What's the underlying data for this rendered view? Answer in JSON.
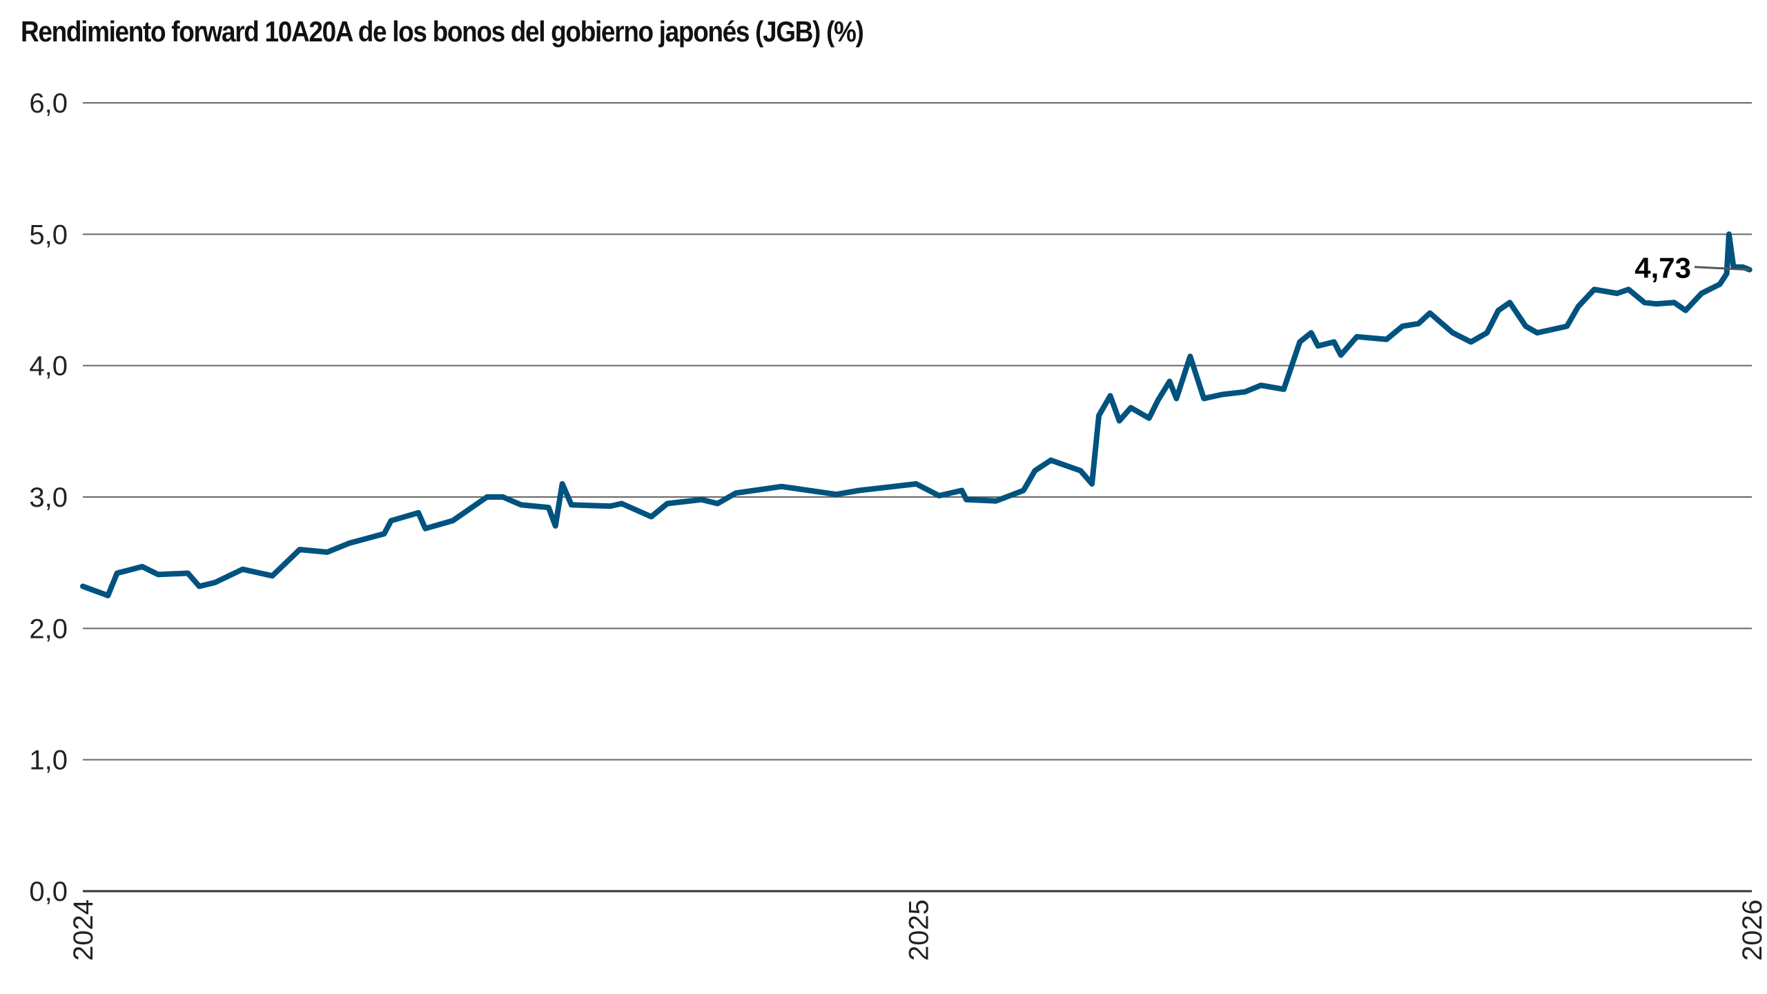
{
  "chart_data": {
    "type": "line",
    "title": "Rendimiento forward 10A20A de los bonos del gobierno japonés (JGB) (%)",
    "xlabel": "",
    "ylabel": "",
    "xlim": [
      "2024-01-01",
      "2026-01-01"
    ],
    "ylim": [
      0,
      6
    ],
    "grid": "horizontal",
    "legend": "none",
    "line_color": "#00527f",
    "y_ticks": [
      "0,0",
      "1,0",
      "2,0",
      "3,0",
      "4,0",
      "5,0",
      "6,0"
    ],
    "x_ticks": [
      {
        "date": "2024-01-01",
        "label": "2024"
      },
      {
        "date": "2025-01-01",
        "label": "2025"
      },
      {
        "date": "2026-01-01",
        "label": "2026"
      }
    ],
    "annotation": {
      "label": "4,73",
      "value": 4.73
    },
    "series": [
      {
        "points": [
          [
            "2024-01-01",
            2.32
          ],
          [
            "2024-01-12",
            2.25
          ],
          [
            "2024-01-16",
            2.42
          ],
          [
            "2024-01-27",
            2.47
          ],
          [
            "2024-02-03",
            2.41
          ],
          [
            "2024-02-16",
            2.42
          ],
          [
            "2024-02-21",
            2.32
          ],
          [
            "2024-02-28",
            2.35
          ],
          [
            "2024-03-11",
            2.45
          ],
          [
            "2024-03-24",
            2.4
          ],
          [
            "2024-04-05",
            2.6
          ],
          [
            "2024-04-17",
            2.58
          ],
          [
            "2024-04-27",
            2.65
          ],
          [
            "2024-05-12",
            2.72
          ],
          [
            "2024-05-15",
            2.82
          ],
          [
            "2024-05-27",
            2.88
          ],
          [
            "2024-05-30",
            2.76
          ],
          [
            "2024-06-11",
            2.82
          ],
          [
            "2024-06-26",
            3.0
          ],
          [
            "2024-07-03",
            3.0
          ],
          [
            "2024-07-11",
            2.94
          ],
          [
            "2024-07-23",
            2.92
          ],
          [
            "2024-07-26",
            2.78
          ],
          [
            "2024-07-29",
            3.1
          ],
          [
            "2024-08-02",
            2.94
          ],
          [
            "2024-08-19",
            2.93
          ],
          [
            "2024-08-24",
            2.95
          ],
          [
            "2024-09-06",
            2.85
          ],
          [
            "2024-09-13",
            2.95
          ],
          [
            "2024-09-28",
            2.98
          ],
          [
            "2024-10-05",
            2.95
          ],
          [
            "2024-10-13",
            3.03
          ],
          [
            "2024-11-02",
            3.08
          ],
          [
            "2024-11-26",
            3.02
          ],
          [
            "2024-12-06",
            3.05
          ],
          [
            "2024-12-31",
            3.1
          ],
          [
            "2025-01-10",
            3.01
          ],
          [
            "2025-01-20",
            3.05
          ],
          [
            "2025-01-22",
            2.98
          ],
          [
            "2025-02-04",
            2.97
          ],
          [
            "2025-02-16",
            3.05
          ],
          [
            "2025-02-21",
            3.2
          ],
          [
            "2025-02-28",
            3.28
          ],
          [
            "2025-03-13",
            3.2
          ],
          [
            "2025-03-18",
            3.1
          ],
          [
            "2025-03-21",
            3.62
          ],
          [
            "2025-03-26",
            3.77
          ],
          [
            "2025-03-30",
            3.58
          ],
          [
            "2025-04-04",
            3.68
          ],
          [
            "2025-04-12",
            3.6
          ],
          [
            "2025-04-16",
            3.74
          ],
          [
            "2025-04-21",
            3.88
          ],
          [
            "2025-04-24",
            3.75
          ],
          [
            "2025-04-30",
            4.07
          ],
          [
            "2025-05-06",
            3.75
          ],
          [
            "2025-05-14",
            3.78
          ],
          [
            "2025-05-24",
            3.8
          ],
          [
            "2025-05-31",
            3.85
          ],
          [
            "2025-06-10",
            3.82
          ],
          [
            "2025-06-17",
            4.18
          ],
          [
            "2025-06-22",
            4.25
          ],
          [
            "2025-06-25",
            4.15
          ],
          [
            "2025-07-02",
            4.18
          ],
          [
            "2025-07-05",
            4.08
          ],
          [
            "2025-07-12",
            4.22
          ],
          [
            "2025-07-25",
            4.2
          ],
          [
            "2025-08-01",
            4.3
          ],
          [
            "2025-08-08",
            4.32
          ],
          [
            "2025-08-13",
            4.4
          ],
          [
            "2025-08-23",
            4.25
          ],
          [
            "2025-08-31",
            4.18
          ],
          [
            "2025-09-07",
            4.25
          ],
          [
            "2025-09-12",
            4.42
          ],
          [
            "2025-09-17",
            4.48
          ],
          [
            "2025-09-24",
            4.3
          ],
          [
            "2025-09-29",
            4.25
          ],
          [
            "2025-10-12",
            4.3
          ],
          [
            "2025-10-17",
            4.45
          ],
          [
            "2025-10-24",
            4.58
          ],
          [
            "2025-11-03",
            4.55
          ],
          [
            "2025-11-08",
            4.58
          ],
          [
            "2025-11-15",
            4.48
          ],
          [
            "2025-11-20",
            4.47
          ],
          [
            "2025-11-28",
            4.48
          ],
          [
            "2025-12-03",
            4.42
          ],
          [
            "2025-12-10",
            4.55
          ],
          [
            "2025-12-18",
            4.62
          ],
          [
            "2025-12-21",
            4.7
          ],
          [
            "2025-12-22",
            5.0
          ],
          [
            "2025-12-24",
            4.75
          ],
          [
            "2025-12-28",
            4.75
          ],
          [
            "2025-12-31",
            4.73
          ]
        ]
      }
    ]
  }
}
